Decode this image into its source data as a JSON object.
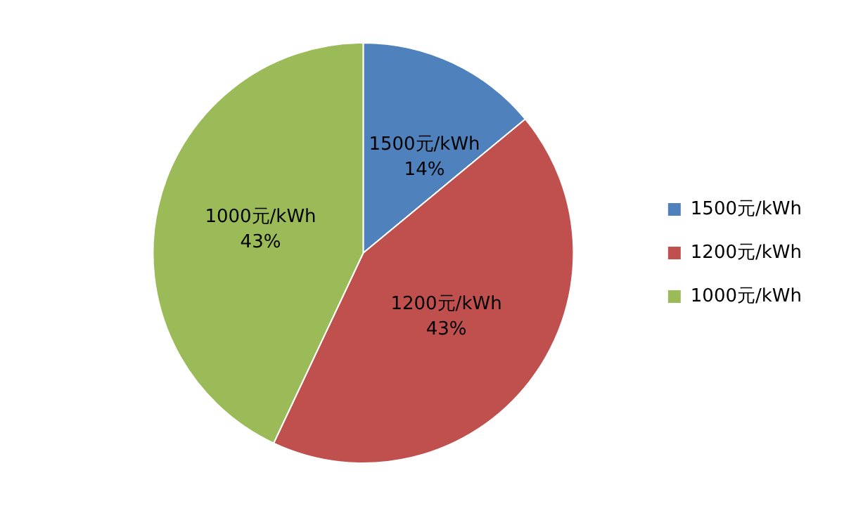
{
  "chart_data": {
    "type": "pie",
    "categories": [
      "1500元/kWh",
      "1200元/kWh",
      "1000元/kWh"
    ],
    "values": [
      14,
      43,
      43
    ],
    "colors": [
      "#4f81bd",
      "#c0504d",
      "#9bbb59"
    ],
    "value_labels": [
      "14%",
      "43%",
      "43%"
    ],
    "legend": "right"
  }
}
